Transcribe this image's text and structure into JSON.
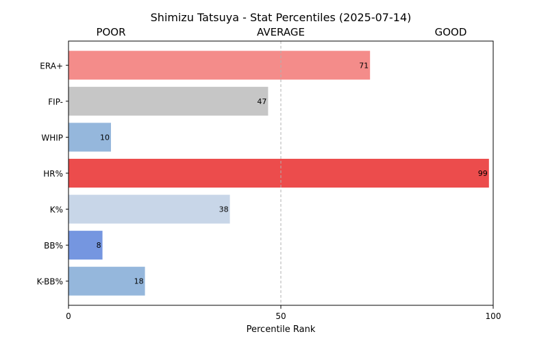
{
  "chart_data": {
    "type": "bar",
    "orientation": "horizontal",
    "title": "Shimizu Tatsuya - Stat Percentiles (2025-07-14)",
    "xlabel": "Percentile Rank",
    "ylabel": "",
    "xlim": [
      0,
      100
    ],
    "xticks": [
      0,
      50,
      100
    ],
    "reference_line": 50,
    "zone_labels": [
      "POOR",
      "AVERAGE",
      "GOOD"
    ],
    "categories": [
      "ERA+",
      "FIP-",
      "WHIP",
      "HR%",
      "K%",
      "BB%",
      "K-BB%"
    ],
    "values": [
      71,
      47,
      10,
      99,
      38,
      8,
      18
    ],
    "colors": [
      "#f48c8a",
      "#c6c6c6",
      "#95b7dc",
      "#ec4c4c",
      "#c8d6e8",
      "#7596e0",
      "#95b7dc"
    ],
    "grid": false,
    "legend": "none"
  }
}
